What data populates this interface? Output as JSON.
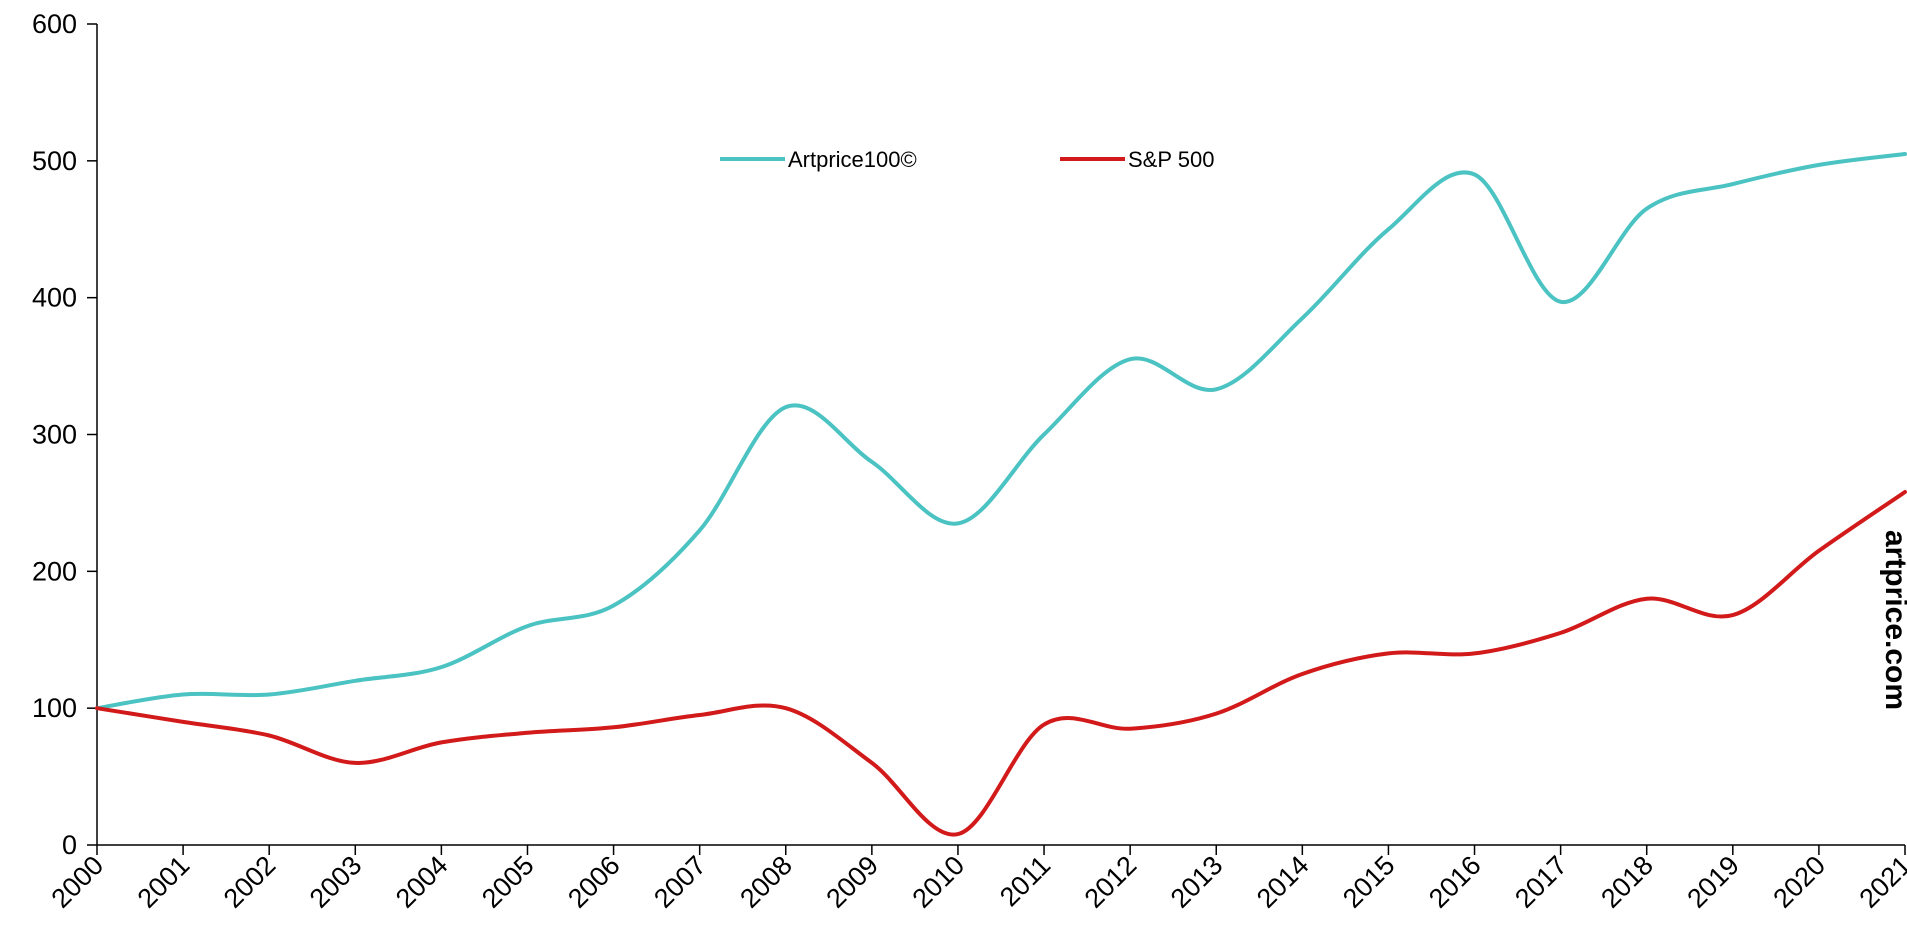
{
  "chart_data": {
    "type": "line",
    "title": "",
    "xlabel": "",
    "ylabel": "",
    "x": [
      "2000",
      "2001",
      "2002",
      "2003",
      "2004",
      "2005",
      "2006",
      "2007",
      "2008",
      "2009",
      "2010",
      "2011",
      "2012",
      "2013",
      "2014",
      "2015",
      "2016",
      "2017",
      "2018",
      "2019",
      "2020",
      "2021"
    ],
    "ylim": [
      0,
      600
    ],
    "yticks": [
      "0",
      "100",
      "200",
      "300",
      "400",
      "500",
      "600"
    ],
    "grid": false,
    "legend_position": "top-center",
    "series": [
      {
        "name": "Artprice100©",
        "color": "#4CC3C3",
        "values": [
          100,
          110,
          110,
          120,
          130,
          160,
          175,
          230,
          320,
          280,
          235,
          300,
          355,
          333,
          385,
          450,
          490,
          397,
          465,
          483,
          497,
          505
        ]
      },
      {
        "name": "S&P 500",
        "color": "#D21A1A",
        "values": [
          100,
          90,
          80,
          60,
          75,
          82,
          86,
          95,
          100,
          60,
          8,
          88,
          85,
          96,
          125,
          140,
          140,
          155,
          180,
          168,
          215,
          258
        ]
      }
    ]
  },
  "watermark": {
    "text": "artprice.com"
  }
}
